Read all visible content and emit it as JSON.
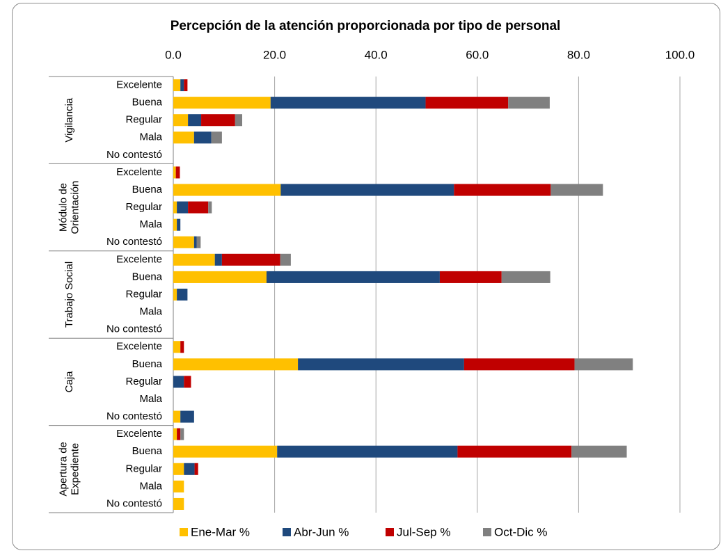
{
  "chart_data": {
    "type": "stacked-barh",
    "title": "Percepción de la atención proporcionada por tipo de personal",
    "groups": [
      {
        "label": [
          "Vigilancia"
        ]
      },
      {
        "label": [
          "Módulo de",
          "Orientación"
        ]
      },
      {
        "label": [
          "Trabajo Social"
        ]
      },
      {
        "label": [
          "Caja"
        ]
      },
      {
        "label": [
          "Apertura de",
          "Expediente"
        ]
      }
    ],
    "categories": [
      "Excelente",
      "Buena",
      "Regular",
      "Mala",
      "No contestó",
      "Excelente",
      "Buena",
      "Regular",
      "Mala",
      "No contestó",
      "Excelente",
      "Buena",
      "Regular",
      "Mala",
      "No contestó",
      "Excelente",
      "Buena",
      "Regular",
      "Mala",
      "No contestó",
      "Excelente",
      "Buena",
      "Regular",
      "Mala",
      "No contestó"
    ],
    "series": [
      {
        "name": "Ene-Mar %",
        "color": "#ffc000",
        "values": [
          1.4,
          19.2,
          2.9,
          4.1,
          0,
          0.5,
          21.2,
          0.7,
          0.7,
          4.1,
          8.2,
          18.4,
          0.7,
          0,
          0,
          1.4,
          24.6,
          0,
          0,
          1.4,
          0.7,
          20.5,
          2.1,
          2.1,
          2.1
        ]
      },
      {
        "name": "Abr-Jun %",
        "color": "#1f497d",
        "values": [
          0.7,
          30.6,
          2.6,
          3.4,
          0,
          0,
          34.2,
          2.2,
          0.7,
          0.5,
          1.4,
          34.2,
          2.1,
          0,
          0,
          0,
          32.8,
          2.1,
          0,
          2.7,
          0,
          35.6,
          2.1,
          0,
          0
        ]
      },
      {
        "name": "Jul-Sep %",
        "color": "#c00000",
        "values": [
          0.7,
          16.3,
          6.7,
          0,
          0,
          0.8,
          19.1,
          4.0,
          0,
          0,
          11.5,
          12.2,
          0,
          0,
          0,
          0.7,
          21.8,
          1.4,
          0,
          0,
          0.7,
          22.5,
          0.7,
          0,
          0
        ]
      },
      {
        "name": "Oct-Dic %",
        "color": "#808080",
        "values": [
          0,
          8.2,
          1.4,
          2.1,
          0,
          0,
          10.3,
          0.7,
          0,
          0.8,
          2.1,
          9.6,
          0,
          0,
          0,
          0,
          11.5,
          0,
          0,
          0,
          0.7,
          10.9,
          0,
          0,
          0
        ]
      }
    ],
    "xlim": [
      0,
      100
    ],
    "xticks": [
      {
        "value": 0,
        "label": "0.0"
      },
      {
        "value": 20,
        "label": "20.0"
      },
      {
        "value": 40,
        "label": "40.0"
      },
      {
        "value": 60,
        "label": "60.0"
      },
      {
        "value": 80,
        "label": "80.0"
      },
      {
        "value": 100,
        "label": "100.0"
      }
    ],
    "grid": true,
    "legend": "bottom"
  }
}
